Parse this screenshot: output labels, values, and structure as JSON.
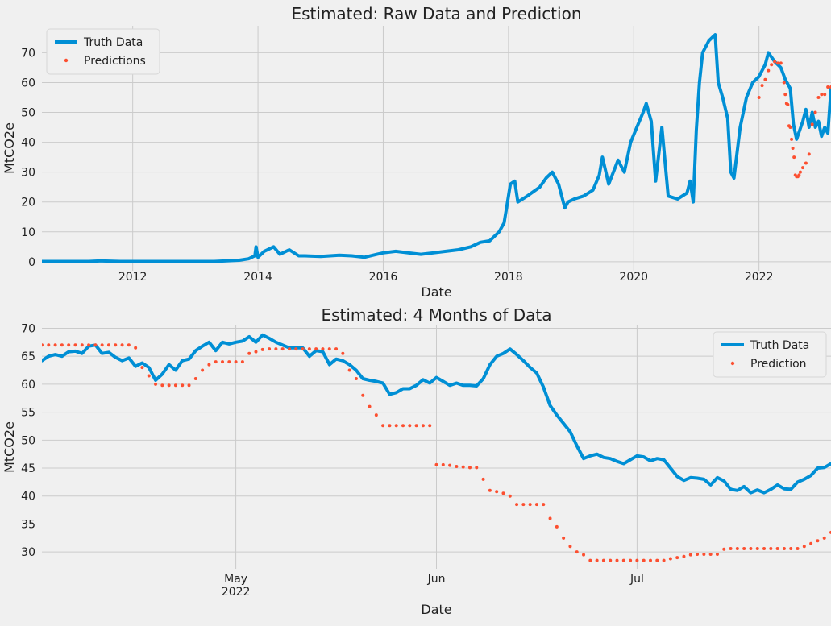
{
  "colors": {
    "background": "#f0f0f0",
    "grid": "#cbcbcb",
    "truth": "#008fd5",
    "prediction": "#fc4f30",
    "text": "#222222",
    "legend_bg": "#f0f0f0"
  },
  "chart_data": [
    {
      "type": "line",
      "title": "Estimated: Raw Data and Prediction",
      "xlabel": "Date",
      "ylabel": "MtCO2e",
      "xlim": [
        2010.55,
        2023.15
      ],
      "ylim": [
        -3,
        79
      ],
      "xticks": [
        2012,
        2014,
        2016,
        2018,
        2020,
        2022
      ],
      "xtick_labels": [
        "2012",
        "2014",
        "2016",
        "2018",
        "2020",
        "2022"
      ],
      "yticks": [
        0,
        10,
        20,
        30,
        40,
        50,
        60,
        70
      ],
      "ytick_labels": [
        "0",
        "10",
        "20",
        "30",
        "40",
        "50",
        "60",
        "70"
      ],
      "grid": true,
      "legend_position": "top-left",
      "series": [
        {
          "name": "Truth Data",
          "style": "line",
          "x": [
            2010.55,
            2011.0,
            2011.3,
            2011.5,
            2011.8,
            2012.0,
            2012.5,
            2013.0,
            2013.3,
            2013.5,
            2013.7,
            2013.85,
            2013.95,
            2013.97,
            2014.0,
            2014.1,
            2014.25,
            2014.35,
            2014.5,
            2014.65,
            2014.75,
            2015.0,
            2015.3,
            2015.5,
            2015.7,
            2015.9,
            2016.0,
            2016.2,
            2016.4,
            2016.6,
            2016.8,
            2017.0,
            2017.2,
            2017.4,
            2017.55,
            2017.7,
            2017.85,
            2017.93,
            2017.97,
            2018.03,
            2018.1,
            2018.15,
            2018.3,
            2018.5,
            2018.6,
            2018.7,
            2018.8,
            2018.9,
            2018.95,
            2019.05,
            2019.2,
            2019.35,
            2019.45,
            2019.5,
            2019.6,
            2019.75,
            2019.85,
            2019.95,
            2020.05,
            2020.15,
            2020.2,
            2020.28,
            2020.35,
            2020.45,
            2020.55,
            2020.7,
            2020.85,
            2020.9,
            2020.95,
            2021.0,
            2021.05,
            2021.1,
            2021.2,
            2021.3,
            2021.35,
            2021.42,
            2021.5,
            2021.55,
            2021.6,
            2021.7,
            2021.8,
            2021.9,
            2022.0,
            2022.1,
            2022.15,
            2022.25,
            2022.35,
            2022.42,
            2022.5,
            2022.55,
            2022.6,
            2022.7,
            2022.75,
            2022.8,
            2022.85,
            2022.9,
            2022.95,
            2023.0,
            2023.05,
            2023.1,
            2023.15
          ],
          "y": [
            0.1,
            0.1,
            0.1,
            0.3,
            0.1,
            0.1,
            0.1,
            0.1,
            0.1,
            0.3,
            0.5,
            1.0,
            2.0,
            5.0,
            1.5,
            3.5,
            5.0,
            2.5,
            4.0,
            2.0,
            2.0,
            1.8,
            2.2,
            2.0,
            1.5,
            2.5,
            3.0,
            3.5,
            3.0,
            2.5,
            3.0,
            3.5,
            4.0,
            5.0,
            6.5,
            7.0,
            10.0,
            13.0,
            18.0,
            26.0,
            27.0,
            20.0,
            22.0,
            25.0,
            28.0,
            30.0,
            26.0,
            18.0,
            20.0,
            21.0,
            22.0,
            24.0,
            29.0,
            35.0,
            26.0,
            34.0,
            30.0,
            40.0,
            45.0,
            50.0,
            53.0,
            47.0,
            27.0,
            45.0,
            22.0,
            21.0,
            23.0,
            27.0,
            20.0,
            44.0,
            60.0,
            70.0,
            74.0,
            76.0,
            60.0,
            55.0,
            48.0,
            30.0,
            28.0,
            45.0,
            55.0,
            60.0,
            62.0,
            66.0,
            70.0,
            67.0,
            65.0,
            61.0,
            58.0,
            46.0,
            41.0,
            47.0,
            51.0,
            45.0,
            50.0,
            45.0,
            47.0,
            42.0,
            45.0,
            43.0,
            58.0
          ]
        },
        {
          "name": "Predictions",
          "style": "dots",
          "x": [
            2022.0,
            2022.05,
            2022.1,
            2022.15,
            2022.2,
            2022.25,
            2022.3,
            2022.35,
            2022.4,
            2022.42,
            2022.44,
            2022.46,
            2022.48,
            2022.5,
            2022.52,
            2022.54,
            2022.56,
            2022.58,
            2022.6,
            2022.62,
            2022.64,
            2022.66,
            2022.7,
            2022.75,
            2022.8,
            2022.85,
            2022.9,
            2022.95,
            2023.0,
            2023.05,
            2023.1,
            2023.15
          ],
          "y": [
            55.0,
            59.0,
            61.0,
            64.0,
            66.0,
            67.0,
            66.5,
            66.5,
            60.0,
            56.0,
            53.0,
            52.6,
            45.5,
            45.0,
            41.0,
            38.0,
            35.0,
            29.0,
            28.5,
            28.5,
            29.0,
            30.0,
            31.5,
            33.0,
            36.0,
            46.0,
            50.0,
            55.0,
            56.0,
            56.0,
            58.5,
            58.5
          ]
        }
      ]
    },
    {
      "type": "line",
      "title": "Estimated: 4 Months of Data",
      "xlabel": "Date",
      "ylabel": "MtCO2e",
      "xlim": [
        0,
        118
      ],
      "ylim": [
        27,
        70.5
      ],
      "xticks": [
        29,
        59,
        89
      ],
      "xtick_labels": [
        "May",
        "Jun",
        "Jul"
      ],
      "xtick_sublabels": [
        "2022",
        "",
        ""
      ],
      "yticks": [
        30,
        35,
        40,
        45,
        50,
        55,
        60,
        65,
        70
      ],
      "ytick_labels": [
        "30",
        "35",
        "40",
        "45",
        "50",
        "55",
        "60",
        "65",
        "70"
      ],
      "grid": true,
      "legend_position": "top-right",
      "series": [
        {
          "name": "Truth Data",
          "style": "line",
          "x": [
            0,
            1,
            2,
            3,
            4,
            5,
            6,
            7,
            8,
            9,
            10,
            11,
            12,
            13,
            14,
            15,
            16,
            17,
            18,
            19,
            20,
            21,
            22,
            23,
            24,
            25,
            26,
            27,
            28,
            29,
            30,
            31,
            32,
            33,
            34,
            35,
            36,
            37,
            38,
            39,
            40,
            41,
            42,
            43,
            44,
            45,
            46,
            47,
            48,
            49,
            50,
            51,
            52,
            53,
            54,
            55,
            56,
            57,
            58,
            59,
            60,
            61,
            62,
            63,
            64,
            65,
            66,
            67,
            68,
            69,
            70,
            71,
            72,
            73,
            74,
            75,
            76,
            77,
            78,
            79,
            80,
            81,
            82,
            83,
            84,
            85,
            86,
            87,
            88,
            89,
            90,
            91,
            92,
            93,
            94,
            95,
            96,
            97,
            98,
            99,
            100,
            101,
            102,
            103,
            104,
            105,
            106,
            107,
            108,
            109,
            110,
            111,
            112,
            113,
            114,
            115,
            116,
            117,
            118
          ],
          "y": [
            64.2,
            65.0,
            65.3,
            65.0,
            65.8,
            65.9,
            65.5,
            66.8,
            67.0,
            65.5,
            65.7,
            64.8,
            64.2,
            64.7,
            63.2,
            63.8,
            63.0,
            60.7,
            61.8,
            63.5,
            62.5,
            64.2,
            64.5,
            66.0,
            66.8,
            67.5,
            66.0,
            67.5,
            67.2,
            67.5,
            67.7,
            68.5,
            67.5,
            68.8,
            68.2,
            67.5,
            67.0,
            66.5,
            66.5,
            66.5,
            65.0,
            66.0,
            65.8,
            63.5,
            64.5,
            64.2,
            63.5,
            62.5,
            61.0,
            60.7,
            60.5,
            60.2,
            58.2,
            58.5,
            59.2,
            59.2,
            59.8,
            60.8,
            60.2,
            61.2,
            60.5,
            59.8,
            60.2,
            59.8,
            59.8,
            59.7,
            61.0,
            63.5,
            65.0,
            65.5,
            66.3,
            65.3,
            64.2,
            63.0,
            62.0,
            59.5,
            56.2,
            54.5,
            53.0,
            51.5,
            49.0,
            46.7,
            47.2,
            47.5,
            46.9,
            46.7,
            46.2,
            45.8,
            46.5,
            47.2,
            47.0,
            46.3,
            46.7,
            46.5,
            45.0,
            43.5,
            42.8,
            43.3,
            43.2,
            43.0,
            42.0,
            43.3,
            42.7,
            41.2,
            41.0,
            41.7,
            40.6,
            41.1,
            40.6,
            41.2,
            42.0,
            41.3,
            41.2,
            42.5,
            43.0,
            43.7,
            45.0,
            45.1,
            45.8
          ]
        },
        {
          "name": "Prediction",
          "style": "dots",
          "x": [
            0,
            1,
            2,
            3,
            4,
            5,
            6,
            7,
            8,
            9,
            10,
            11,
            12,
            13,
            14,
            15,
            16,
            17,
            18,
            19,
            20,
            21,
            22,
            23,
            24,
            25,
            26,
            27,
            28,
            29,
            30,
            31,
            32,
            33,
            34,
            35,
            36,
            37,
            38,
            39,
            40,
            41,
            42,
            43,
            44,
            45,
            46,
            47,
            48,
            49,
            50,
            51,
            52,
            53,
            54,
            55,
            56,
            57,
            58,
            59,
            60,
            61,
            62,
            63,
            64,
            65,
            66,
            67,
            68,
            69,
            70,
            71,
            72,
            73,
            74,
            75,
            76,
            77,
            78,
            79,
            80,
            81,
            82,
            83,
            84,
            85,
            86,
            87,
            88,
            89,
            90,
            91,
            92,
            93,
            94,
            95,
            96,
            97,
            98,
            99,
            100,
            101,
            102,
            103,
            104,
            105,
            106,
            107,
            108,
            109,
            110,
            111,
            112,
            113,
            114,
            115,
            116,
            117,
            118
          ],
          "y": [
            67.0,
            67.0,
            67.0,
            67.0,
            67.0,
            67.0,
            67.0,
            67.0,
            67.0,
            67.0,
            67.0,
            67.0,
            67.0,
            67.0,
            66.5,
            63.0,
            61.5,
            60.0,
            59.8,
            59.8,
            59.8,
            59.8,
            59.8,
            61.0,
            62.5,
            63.5,
            64.0,
            64.0,
            64.0,
            64.0,
            64.0,
            65.5,
            65.8,
            66.2,
            66.3,
            66.3,
            66.3,
            66.3,
            66.3,
            66.3,
            66.3,
            66.3,
            66.3,
            66.3,
            66.3,
            65.5,
            62.5,
            61.0,
            58.0,
            56.0,
            54.5,
            52.6,
            52.6,
            52.6,
            52.6,
            52.6,
            52.6,
            52.6,
            52.6,
            45.6,
            45.6,
            45.5,
            45.3,
            45.2,
            45.1,
            45.1,
            43.0,
            41.0,
            40.8,
            40.5,
            40.0,
            38.5,
            38.5,
            38.5,
            38.5,
            38.5,
            36.0,
            34.5,
            32.5,
            31.0,
            30.0,
            29.5,
            28.5,
            28.5,
            28.5,
            28.5,
            28.5,
            28.5,
            28.5,
            28.5,
            28.5,
            28.5,
            28.5,
            28.5,
            28.8,
            29.0,
            29.2,
            29.5,
            29.6,
            29.6,
            29.6,
            29.6,
            30.5,
            30.6,
            30.6,
            30.6,
            30.6,
            30.6,
            30.6,
            30.6,
            30.6,
            30.6,
            30.6,
            30.6,
            31.0,
            31.5,
            32.0,
            32.5,
            33.5
          ]
        }
      ]
    }
  ]
}
